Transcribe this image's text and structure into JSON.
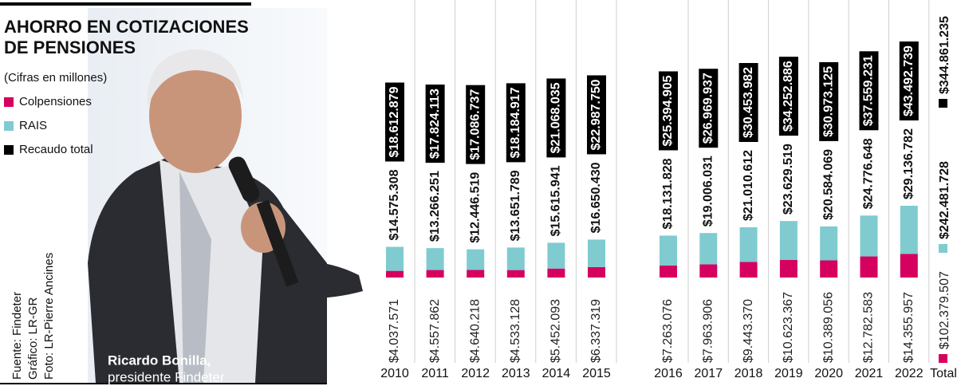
{
  "header": {
    "title_lines": [
      "AHORRO EN COTIZACIONES",
      "DE PENSIONES"
    ],
    "subtitle": "(Cifras en millones)"
  },
  "photo_caption": {
    "name": "Ricardo Bonilla,",
    "role": "presidente Findeter"
  },
  "credits": [
    "Fuente: Findeter",
    "Gráfico: LR-GR",
    "Foto: LR-Pierre Ancines"
  ],
  "chart_data": {
    "type": "bar",
    "stacked": true,
    "categories": [
      "2010",
      "2011",
      "2012",
      "2013",
      "2014",
      "2015",
      "2016",
      "2017",
      "2018",
      "2019",
      "2020",
      "2021",
      "2022"
    ],
    "series": [
      {
        "name": "Colpensiones",
        "color": "#d6005f",
        "values": [
          4037571,
          4557862,
          4640218,
          4533128,
          5452093,
          6337319,
          7263076,
          7963906,
          9443370,
          10623367,
          10389056,
          12782583,
          14355957
        ],
        "value_labels": [
          "$4.037.571",
          "$4.557.862",
          "$4.640.218",
          "$4.533.128",
          "$5.452.093",
          "$6.337.319",
          "$7.263.076",
          "$7.963.906",
          "$9.443.370",
          "$10.623.367",
          "$10.389.056",
          "$12.782.583",
          "$14.355.957"
        ]
      },
      {
        "name": "RAIS",
        "color": "#7fcbd0",
        "values": [
          14575308,
          13266251,
          12446519,
          13651789,
          15615941,
          16650430,
          18131828,
          19006031,
          21010612,
          23629519,
          20584069,
          24776648,
          29136782
        ],
        "value_labels": [
          "$14.575.308",
          "$13.266.251",
          "$12.446.519",
          "$13.651.789",
          "$15.615.941",
          "$16.650.430",
          "$18.131.828",
          "$19.006.031",
          "$21.010.612",
          "$23.629.519",
          "$20.584.069",
          "$24.776.648",
          "$29.136.782"
        ]
      },
      {
        "name": "Recaudo total",
        "color": "#000000",
        "as": "label",
        "values": [
          18612879,
          17824113,
          17086737,
          18184917,
          21068035,
          22987750,
          25394905,
          26969937,
          30453982,
          34252886,
          30973125,
          37559231,
          43492739
        ],
        "value_labels": [
          "$18.612.879",
          "$17.824.113",
          "$17.086.737",
          "$18.184.917",
          "$21.068.035",
          "$22.987.750",
          "$25.394.905",
          "$26.969.937",
          "$30.453.982",
          "$34.252.886",
          "$30.973.125",
          "$37.559.231",
          "$43.492.739"
        ]
      }
    ],
    "total": {
      "label": "Total",
      "values": [
        102379507,
        242481728,
        344861235
      ],
      "value_labels": [
        "$102.379.507",
        "$242.481.728",
        "$344.861.235"
      ]
    }
  }
}
